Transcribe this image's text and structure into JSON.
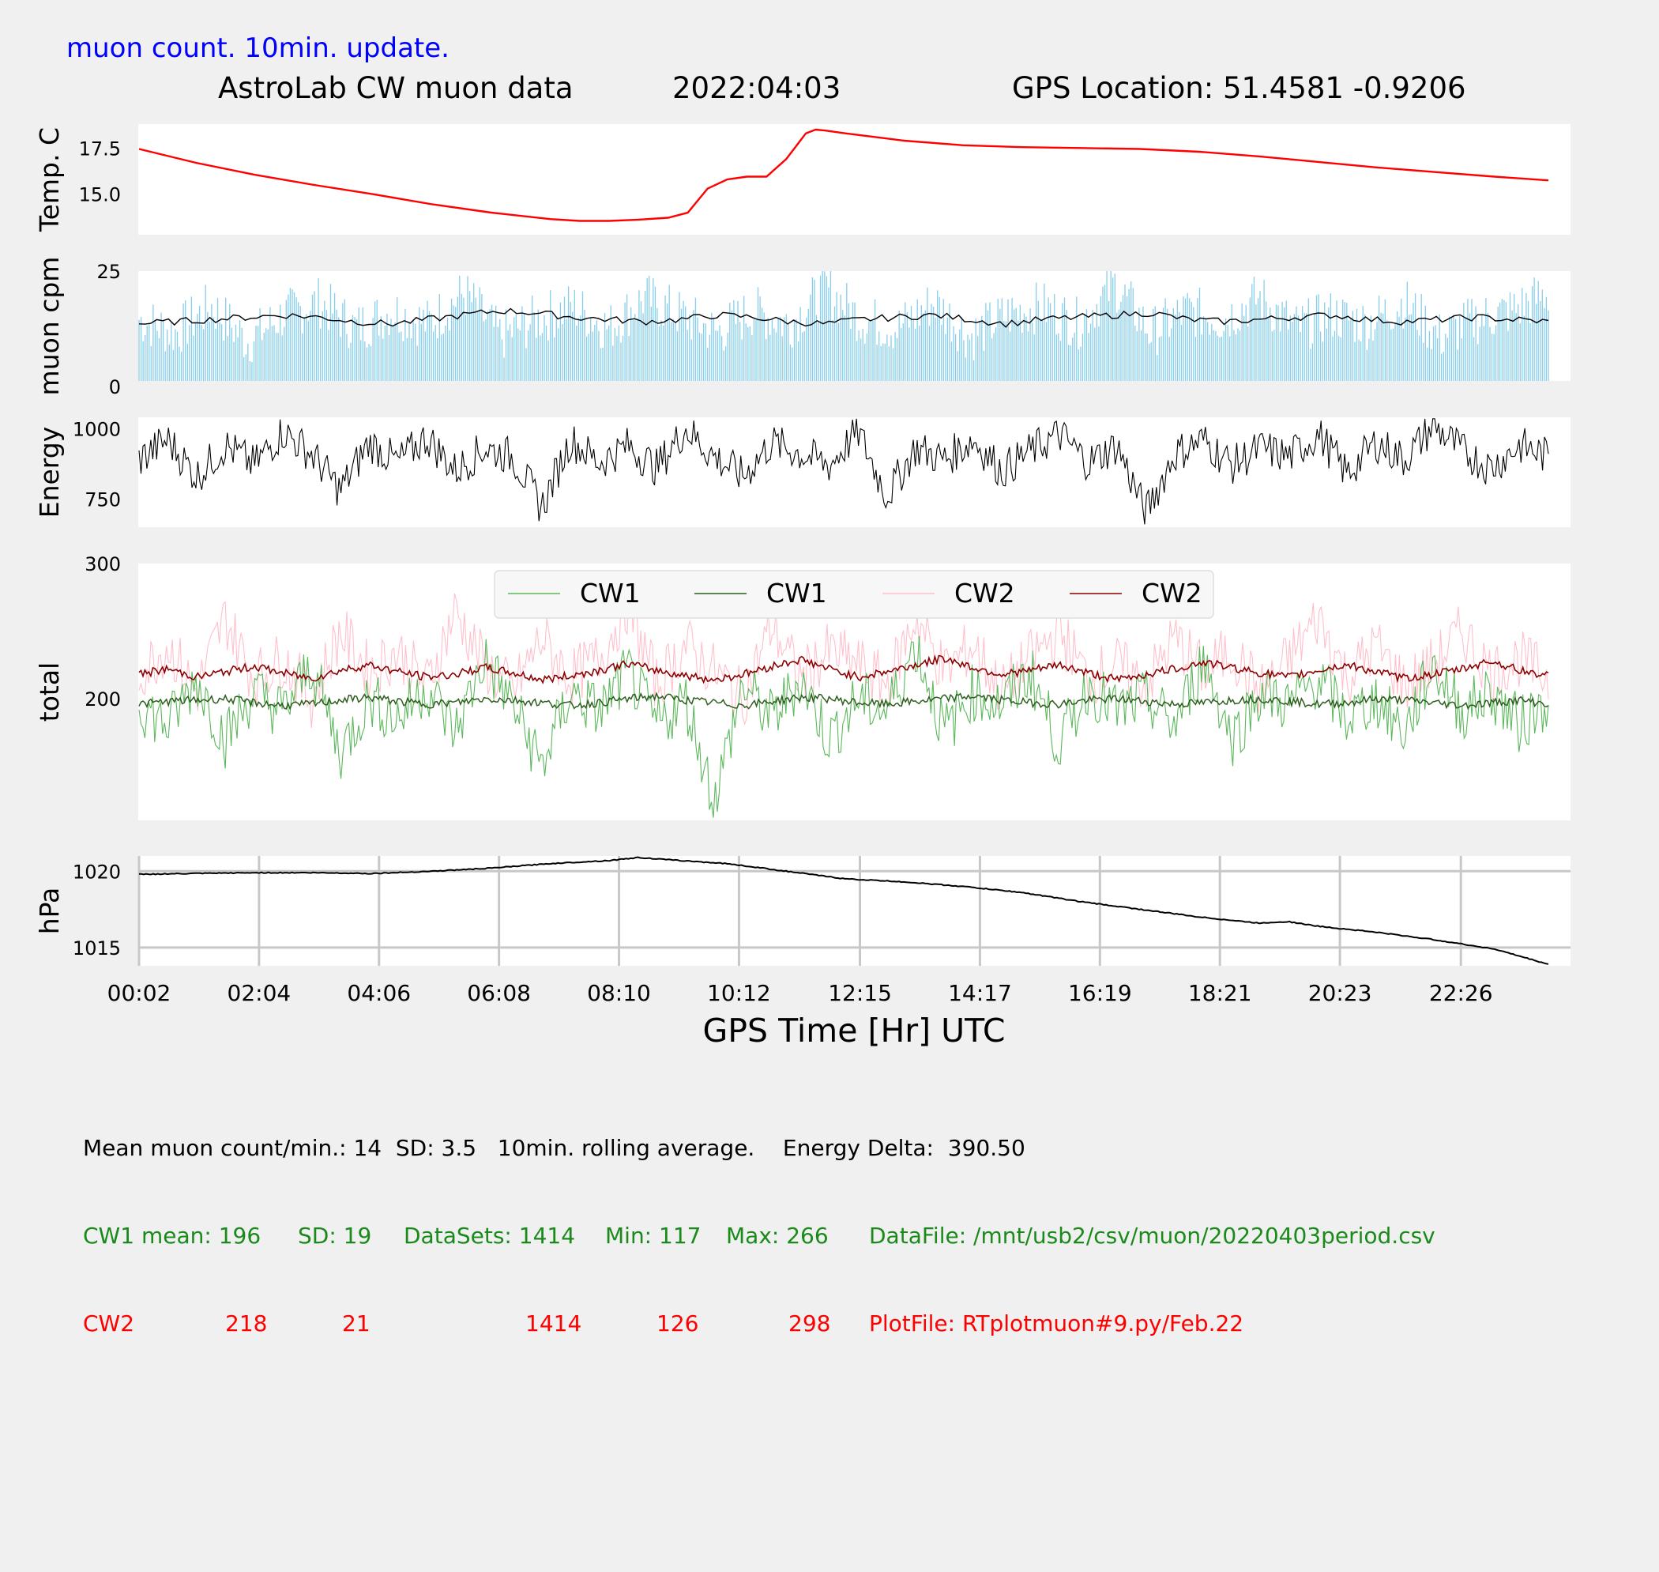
{
  "header": {
    "update_note": "muon count.  10min. update.",
    "title": "AstroLab CW muon data",
    "date": "2022:04:03",
    "gps_location": "GPS Location: 51.4581   -0.9206"
  },
  "colors": {
    "background": "#f0f0f0",
    "panel": "#ffffff",
    "temperature": "#ff0000",
    "muon_bars": "#87ceeb",
    "average_line": "#000000",
    "cw1_raw": "#5cb85c",
    "cw1_avg": "#2e5e1e",
    "cw2_raw": "#ffc0cb",
    "cw2_avg": "#8b0000",
    "grid": "#c8c8c8",
    "note_blue": "#0000ff",
    "stats_green": "#1a8a1a",
    "stats_red": "#ff0000"
  },
  "chart_data": [
    {
      "type": "line",
      "ylabel": "Temp. C",
      "yticks": [
        "17.5",
        "15.0"
      ],
      "ylim": [
        12.8,
        18.8
      ],
      "x": [
        "00:02",
        "01:00",
        "02:00",
        "03:00",
        "04:00",
        "05:00",
        "06:00",
        "07:00",
        "07:30",
        "08:00",
        "08:30",
        "09:00",
        "09:20",
        "09:40",
        "10:00",
        "10:20",
        "10:40",
        "11:00",
        "11:20",
        "11:30",
        "11:40",
        "12:00",
        "12:30",
        "13:00",
        "14:00",
        "15:00",
        "16:00",
        "17:00",
        "18:00",
        "19:00",
        "20:00",
        "21:00",
        "22:00",
        "23:00",
        "23:55"
      ],
      "series": [
        {
          "values": [
            17.45,
            16.7,
            16.05,
            15.5,
            15.0,
            14.45,
            14.0,
            13.65,
            13.55,
            13.55,
            13.62,
            13.72,
            14.0,
            15.3,
            15.8,
            15.95,
            15.95,
            16.9,
            18.3,
            18.5,
            18.45,
            18.3,
            18.1,
            17.9,
            17.65,
            17.55,
            17.5,
            17.45,
            17.3,
            17.05,
            16.75,
            16.45,
            16.2,
            15.95,
            15.75
          ]
        }
      ]
    },
    {
      "type": "bar",
      "ylabel": "muon cpm",
      "yticks": [
        "25",
        "0"
      ],
      "ylim": [
        0,
        25
      ],
      "series": [
        {
          "values": [
            14,
            11,
            17,
            9,
            15,
            18,
            12,
            16,
            13,
            20,
            10,
            14,
            17,
            12,
            19,
            15,
            11,
            16,
            13,
            21,
            14,
            12,
            18,
            10,
            15,
            17,
            13,
            22,
            11,
            16,
            14,
            19,
            12,
            15,
            13,
            18,
            10,
            14,
            16,
            20
          ]
        },
        {
          "values": [
            13,
            13.5,
            14,
            14.5,
            15,
            14.5,
            13.5,
            13,
            14,
            15,
            16,
            15.5,
            14.5,
            14,
            13.5,
            14,
            15,
            14.5,
            13.5,
            13,
            14,
            14.5,
            15,
            14,
            13,
            14,
            14.5,
            15,
            15.5,
            14,
            13.5,
            14,
            14.5,
            15,
            14,
            13.5,
            14,
            14.5,
            14,
            13.5
          ]
        }
      ]
    },
    {
      "type": "line",
      "ylabel": "Energy",
      "yticks": [
        "1000",
        "750"
      ],
      "ylim": [
        650,
        1040
      ],
      "series": [
        {
          "values": [
            890,
            960,
            830,
            940,
            870,
            990,
            910,
            780,
            950,
            880,
            970,
            850,
            930,
            900,
            720,
            960,
            880,
            940,
            860,
            1000,
            900,
            830,
            950,
            910,
            870,
            990,
            760,
            930,
            890,
            960,
            850,
            920,
            980,
            880,
            940,
            700,
            910,
            960,
            870,
            930,
            900,
            980,
            840,
            950,
            890,
            1010,
            920,
            860,
            940,
            900
          ]
        }
      ]
    },
    {
      "type": "line",
      "ylabel": "total",
      "yticks": [
        "300",
        "200"
      ],
      "ylim": [
        110,
        300
      ],
      "legend": {
        "placement": "top-center",
        "entries": [
          "CW1",
          "CW1",
          "CW2",
          "CW2"
        ]
      },
      "series": [
        {
          "values": [
            196,
            180,
            215,
            170,
            205,
            190,
            225,
            160,
            200,
            185,
            210,
            175,
            230,
            195,
            150,
            205,
            190,
            220,
            180,
            200,
            125,
            210,
            185,
            215,
            170,
            200,
            190,
            240,
            175,
            205,
            195,
            220,
            165,
            210,
            190,
            200,
            180,
            230,
            170,
            205,
            195,
            215,
            185,
            200,
            175,
            225,
            190,
            205,
            180,
            200
          ]
        },
        {
          "values": [
            196,
            198,
            199,
            200,
            197,
            195,
            196,
            199,
            201,
            198,
            196,
            197,
            200,
            199,
            197,
            195,
            197,
            200,
            202,
            199,
            197,
            195,
            198,
            201,
            200,
            197,
            196,
            198,
            200,
            202,
            199,
            197,
            196,
            199,
            200,
            198,
            196,
            197,
            199,
            200,
            198,
            196,
            197,
            200,
            199,
            197,
            195,
            197,
            199,
            196
          ]
        },
        {
          "values": [
            218,
            240,
            205,
            260,
            215,
            230,
            200,
            250,
            220,
            235,
            210,
            265,
            225,
            205,
            245,
            215,
            230,
            270,
            210,
            240,
            220,
            200,
            255,
            215,
            235,
            225,
            210,
            260,
            220,
            240,
            205,
            230,
            250,
            215,
            225,
            210,
            245,
            220,
            235,
            205,
            230,
            260,
            215,
            240,
            210,
            225,
            250,
            220,
            230,
            215
          ]
        },
        {
          "values": [
            218,
            222,
            216,
            220,
            224,
            219,
            215,
            221,
            225,
            220,
            216,
            218,
            223,
            219,
            214,
            217,
            221,
            226,
            221,
            217,
            214,
            218,
            224,
            229,
            222,
            216,
            220,
            225,
            230,
            223,
            218,
            221,
            225,
            219,
            214,
            218,
            222,
            227,
            223,
            219,
            216,
            221,
            225,
            220,
            215,
            218,
            222,
            228,
            221,
            217
          ]
        }
      ]
    },
    {
      "type": "line",
      "ylabel": "hPa",
      "yticks": [
        "1020",
        "1015"
      ],
      "ylim": [
        1013.8,
        1021
      ],
      "grid": true,
      "x": [
        "00:02",
        "01:00",
        "02:00",
        "03:00",
        "04:00",
        "05:00",
        "06:00",
        "07:00",
        "08:00",
        "08:30",
        "09:00",
        "10:00",
        "11:00",
        "12:00",
        "13:00",
        "14:00",
        "15:00",
        "16:00",
        "17:00",
        "18:00",
        "19:00",
        "19:30",
        "20:00",
        "21:00",
        "22:00",
        "23:00",
        "23:55"
      ],
      "series": [
        {
          "values": [
            1019.8,
            1019.85,
            1019.9,
            1019.9,
            1019.85,
            1020.0,
            1020.2,
            1020.5,
            1020.7,
            1020.9,
            1020.75,
            1020.5,
            1020.0,
            1019.5,
            1019.3,
            1019.0,
            1018.6,
            1018.0,
            1017.5,
            1017.0,
            1016.6,
            1016.7,
            1016.4,
            1016.0,
            1015.5,
            1014.9,
            1013.9
          ]
        }
      ]
    }
  ],
  "x_axis": {
    "ticks": [
      "00:02",
      "02:04",
      "04:06",
      "06:08",
      "08:10",
      "10:12",
      "12:15",
      "14:17",
      "16:19",
      "18:21",
      "20:23",
      "22:26"
    ],
    "label": "GPS Time  [Hr] UTC"
  },
  "stats": {
    "summary": "Mean muon count/min.: 14  SD: 3.5   10min. rolling average.    Energy Delta:  390.50",
    "cw1": {
      "label": "CW1 mean: 196",
      "sd": "SD: 19",
      "datasets": "DataSets: 1414",
      "min": "Min: 117",
      "max": "Max: 266",
      "file": "DataFile: /mnt/usb2/csv/muon/20220403period.csv"
    },
    "cw2": {
      "label": "CW2",
      "mean": "218",
      "sd": "21",
      "datasets": "1414",
      "min": "126",
      "max": "298",
      "file": "PlotFile: RTplotmuon#9.py/Feb.22"
    }
  }
}
